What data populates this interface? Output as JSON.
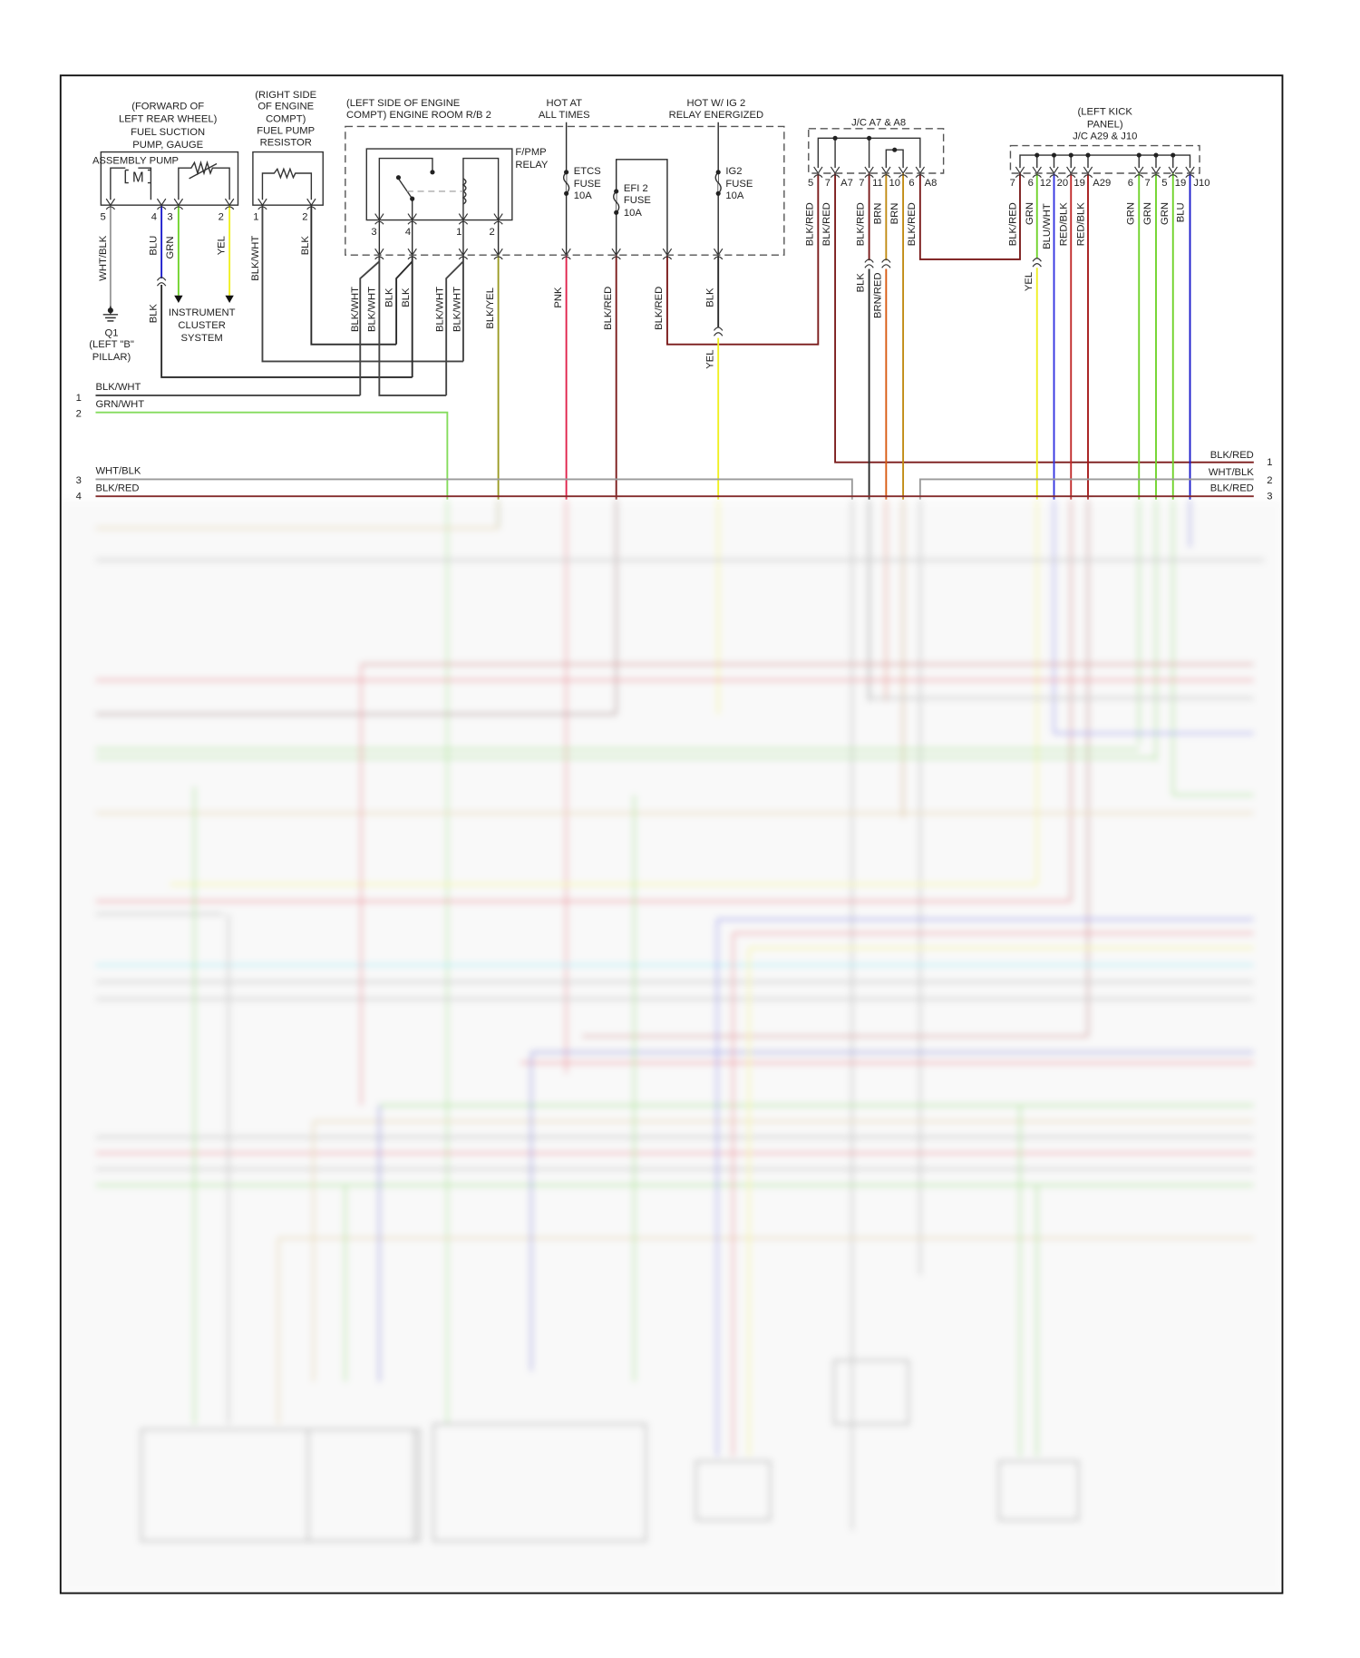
{
  "diagram": {
    "components": {
      "pump_location": [
        "(FORWARD OF",
        "LEFT REAR WHEEL)",
        "FUEL SUCTION",
        "PUMP, GAUGE"
      ],
      "pump_name": "ASSEMBLY PUMP",
      "motor_symbol": "M",
      "resistor_title": [
        "(RIGHT SIDE",
        "OF ENGINE",
        "COMPT)",
        "FUEL PUMP",
        "RESISTOR"
      ],
      "rb2_title": [
        "(LEFT SIDE OF ENGINE",
        "COMPT) ENGINE ROOM R/B 2"
      ],
      "relay_name": [
        "F/PMP",
        "RELAY"
      ],
      "hot_at_all_times": [
        "HOT AT",
        "ALL TIMES"
      ],
      "hot_ig2": [
        "HOT W/ IG 2",
        "RELAY ENERGIZED"
      ],
      "etcs_fuse": [
        "ETCS",
        "FUSE",
        "10A"
      ],
      "efi2_fuse": [
        "EFI 2",
        "FUSE",
        "10A"
      ],
      "ig2_fuse": [
        "IG2",
        "FUSE",
        "10A"
      ],
      "jc_a7_a8": "J/C A7 & A8",
      "kick_panel": [
        "(LEFT KICK",
        "PANEL)",
        "J/C A29 & J10"
      ],
      "ground": [
        "Q1",
        "(LEFT \"B\"",
        "PILLAR)"
      ],
      "instrument_cluster": [
        "INSTRUMENT",
        "CLUSTER",
        "SYSTEM"
      ]
    },
    "pins": {
      "pump": [
        "5",
        "4",
        "3",
        "2"
      ],
      "resistor": [
        "1",
        "2"
      ],
      "relay": [
        "3",
        "4",
        "1",
        "2"
      ],
      "jc_a7_a8": [
        "5",
        "7",
        "A7",
        "7",
        "11",
        "10",
        "6",
        "A8"
      ],
      "jc_a29_j10": [
        "7",
        "6",
        "12",
        "20",
        "19",
        "A29",
        "6",
        "7",
        "5",
        "19",
        "J10"
      ]
    },
    "wire_labels": {
      "pump": [
        "WHT/BLK",
        "BLU",
        "GRN",
        "YEL",
        "BLK"
      ],
      "resistor": [
        "BLK/WHT",
        "BLK"
      ],
      "relay": [
        "BLK/WHT",
        "BLK/WHT",
        "BLK",
        "BLK",
        "BLK/WHT",
        "BLK/WHT",
        "BLK/YEL"
      ],
      "fuses": [
        "PNK",
        "BLK/RED",
        "BLK/RED",
        "BLK",
        "YEL"
      ],
      "jc_a7_a8": [
        "BLK/RED",
        "BLK/RED",
        "BLK/RED",
        "BRN",
        "BRN",
        "BLK/RED",
        "BLK",
        "BRN/RED"
      ],
      "jc_a29_j10": [
        "BLK/RED",
        "GRN",
        "BLU/WHT",
        "RED/BLK",
        "RED/BLK",
        "GRN",
        "GRN",
        "GRN",
        "BLU",
        "YEL"
      ]
    },
    "left_bus": [
      {
        "num": "1",
        "label": "BLK/WHT"
      },
      {
        "num": "2",
        "label": "GRN/WHT"
      },
      {
        "num": "3",
        "label": "WHT/BLK"
      },
      {
        "num": "4",
        "label": "BLK/RED"
      }
    ],
    "right_bus": [
      {
        "num": "1",
        "label": "BLK/RED"
      },
      {
        "num": "2",
        "label": "WHT/BLK"
      },
      {
        "num": "3",
        "label": "BLK/RED"
      }
    ],
    "wire_colors": {
      "BLK": "#2a2a2a",
      "BLKWHT": "#444444",
      "WHTBLK": "#9a9a9a",
      "BLU": "#1a1acc",
      "GRN": "#6fd32a",
      "YEL": "#f0f020",
      "PNK": "#e0204a",
      "BLKRED": "#7a1a1a",
      "BLKYEL": "#9a9a22",
      "GRNWHT": "#84dc5c",
      "BRN": "#c08a10",
      "BRNRED": "#d85a10",
      "BLUWHT": "#3535e0",
      "REDBLK": "#c02828",
      "REDBLK2": "#a51818",
      "CYAN": "#40e0f0",
      "TAN": "#d8c080"
    }
  }
}
